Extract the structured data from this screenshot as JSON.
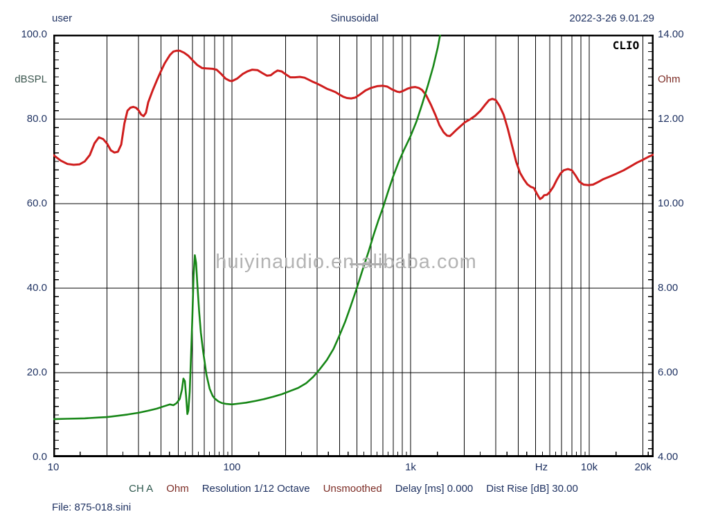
{
  "header": {
    "left": "user",
    "center": "Sinusoidal",
    "right": "2022-3-26 9.01.29"
  },
  "plot": {
    "brand": "CLIO",
    "watermark": "huiyinaudio.en.alibaba.com",
    "left_axis": {
      "label": "dBSPL",
      "min": 0,
      "max": 100,
      "grid_values": [
        20,
        40,
        60,
        80
      ],
      "minor_tick_step": 2,
      "ticks": [
        {
          "label": "100.0",
          "value": 100
        },
        {
          "label": "80.0",
          "value": 80
        },
        {
          "label": "60.0",
          "value": 60
        },
        {
          "label": "40.0",
          "value": 40
        },
        {
          "label": "20.0",
          "value": 20
        },
        {
          "label": "0.0",
          "value": 0
        }
      ]
    },
    "right_axis": {
      "label": "Ohm",
      "min": 4,
      "max": 14,
      "grid_values": [
        6,
        8,
        10,
        12
      ],
      "minor_tick_step": 0.2,
      "ticks": [
        {
          "label": "14.00",
          "value": 14
        },
        {
          "label": "12.00",
          "value": 12
        },
        {
          "label": "10.00",
          "value": 10
        },
        {
          "label": "8.00",
          "value": 8
        },
        {
          "label": "6.00",
          "value": 6
        },
        {
          "label": "4.00",
          "value": 4
        }
      ]
    },
    "x_axis": {
      "unit": "Hz",
      "min": 10,
      "max": 22900,
      "scale": "log",
      "labels": [
        {
          "label": "10",
          "freq": 10
        },
        {
          "label": "100",
          "freq": 100
        },
        {
          "label": "1k",
          "freq": 1000
        },
        {
          "label": "Hz",
          "freq": 5400
        },
        {
          "label": "10k",
          "freq": 10000
        },
        {
          "label": "20k",
          "freq": 20000
        }
      ]
    }
  },
  "status_line": {
    "segments": [
      {
        "text": "CH A",
        "color": "#2d574d"
      },
      {
        "text": "Ohm",
        "color": "#7c2b24"
      },
      {
        "text": "Resolution 1/12 Octave",
        "color": "#1e3161"
      },
      {
        "text": "Unsmoothed",
        "color": "#7c2b24"
      },
      {
        "text": "Delay [ms] 0.000",
        "color": "#1e3161"
      },
      {
        "text": "Dist Rise [dB] 30.00",
        "color": "#1e3161"
      }
    ]
  },
  "file_label": "File: 875-018.sini",
  "chart_data": {
    "type": "line",
    "title": "Sinusoidal",
    "x_scale": "log",
    "x_range": [
      10,
      22900
    ],
    "grid": true,
    "x_gridlines": [
      20,
      30,
      40,
      50,
      60,
      70,
      80,
      90,
      100,
      200,
      300,
      400,
      500,
      600,
      700,
      800,
      900,
      1000,
      2000,
      3000,
      4000,
      5000,
      6000,
      7000,
      8000,
      9000,
      10000,
      20000
    ],
    "y_gridlines_db": [
      20,
      40,
      60,
      80
    ],
    "y_gridlines_ohm": [
      6,
      8,
      10,
      12
    ],
    "series": [
      {
        "name": "SPL response",
        "unit": "dBSPL",
        "axis": "left",
        "color": "#cf1d1d",
        "points": [
          [
            10,
            71.5
          ],
          [
            11,
            70.2
          ],
          [
            12,
            69.4
          ],
          [
            13,
            69.2
          ],
          [
            14,
            69.3
          ],
          [
            15,
            70.0
          ],
          [
            16,
            71.5
          ],
          [
            17,
            74.3
          ],
          [
            18,
            75.7
          ],
          [
            19,
            75.3
          ],
          [
            20,
            74.2
          ],
          [
            21,
            72.6
          ],
          [
            22,
            72.1
          ],
          [
            23,
            72.3
          ],
          [
            24,
            74.0
          ],
          [
            25,
            79.0
          ],
          [
            26,
            82.0
          ],
          [
            27,
            82.7
          ],
          [
            28,
            82.9
          ],
          [
            29,
            82.7
          ],
          [
            30,
            82.1
          ],
          [
            31,
            81.1
          ],
          [
            32,
            80.7
          ],
          [
            33,
            81.5
          ],
          [
            34,
            84.0
          ],
          [
            36,
            86.8
          ],
          [
            38,
            89.2
          ],
          [
            40,
            91.3
          ],
          [
            42,
            93.2
          ],
          [
            45,
            95.2
          ],
          [
            47,
            96.0
          ],
          [
            49,
            96.2
          ],
          [
            51,
            96.2
          ],
          [
            54,
            95.7
          ],
          [
            57,
            95.0
          ],
          [
            60,
            94.0
          ],
          [
            64,
            92.8
          ],
          [
            68,
            92.1
          ],
          [
            72,
            92.0
          ],
          [
            78,
            91.9
          ],
          [
            82,
            91.7
          ],
          [
            87,
            90.7
          ],
          [
            92,
            89.6
          ],
          [
            97,
            89.1
          ],
          [
            100,
            89.0
          ],
          [
            107,
            89.6
          ],
          [
            115,
            90.7
          ],
          [
            122,
            91.3
          ],
          [
            130,
            91.7
          ],
          [
            139,
            91.6
          ],
          [
            148,
            90.9
          ],
          [
            157,
            90.3
          ],
          [
            165,
            90.4
          ],
          [
            172,
            91.0
          ],
          [
            180,
            91.5
          ],
          [
            190,
            91.3
          ],
          [
            200,
            90.6
          ],
          [
            212,
            89.9
          ],
          [
            225,
            89.9
          ],
          [
            240,
            90.0
          ],
          [
            255,
            89.8
          ],
          [
            270,
            89.3
          ],
          [
            285,
            88.8
          ],
          [
            300,
            88.4
          ],
          [
            320,
            87.8
          ],
          [
            340,
            87.2
          ],
          [
            360,
            86.8
          ],
          [
            380,
            86.4
          ],
          [
            400,
            85.8
          ],
          [
            420,
            85.3
          ],
          [
            440,
            85.0
          ],
          [
            465,
            84.9
          ],
          [
            490,
            85.1
          ],
          [
            520,
            85.8
          ],
          [
            560,
            86.8
          ],
          [
            600,
            87.4
          ],
          [
            650,
            87.8
          ],
          [
            700,
            87.9
          ],
          [
            740,
            87.7
          ],
          [
            790,
            87.0
          ],
          [
            840,
            86.5
          ],
          [
            870,
            86.4
          ],
          [
            910,
            86.7
          ],
          [
            960,
            87.2
          ],
          [
            1010,
            87.5
          ],
          [
            1060,
            87.6
          ],
          [
            1110,
            87.4
          ],
          [
            1160,
            86.9
          ],
          [
            1220,
            85.7
          ],
          [
            1300,
            83.4
          ],
          [
            1380,
            80.9
          ],
          [
            1450,
            78.6
          ],
          [
            1530,
            76.9
          ],
          [
            1600,
            76.1
          ],
          [
            1660,
            76.0
          ],
          [
            1720,
            76.6
          ],
          [
            1820,
            77.6
          ],
          [
            1920,
            78.5
          ],
          [
            2020,
            79.3
          ],
          [
            2160,
            80.0
          ],
          [
            2300,
            80.8
          ],
          [
            2450,
            81.9
          ],
          [
            2600,
            83.3
          ],
          [
            2750,
            84.5
          ],
          [
            2870,
            84.8
          ],
          [
            3000,
            84.5
          ],
          [
            3150,
            83.1
          ],
          [
            3320,
            81.0
          ],
          [
            3500,
            77.7
          ],
          [
            3700,
            73.7
          ],
          [
            3900,
            69.9
          ],
          [
            4100,
            67.3
          ],
          [
            4300,
            65.8
          ],
          [
            4500,
            64.6
          ],
          [
            4700,
            64.0
          ],
          [
            4900,
            63.7
          ],
          [
            5100,
            62.3
          ],
          [
            5300,
            61.1
          ],
          [
            5450,
            61.4
          ],
          [
            5600,
            62.0
          ],
          [
            5800,
            62.1
          ],
          [
            6000,
            62.7
          ],
          [
            6300,
            64.0
          ],
          [
            6600,
            65.7
          ],
          [
            6900,
            67.1
          ],
          [
            7200,
            67.9
          ],
          [
            7600,
            68.2
          ],
          [
            8000,
            67.9
          ],
          [
            8400,
            66.6
          ],
          [
            8800,
            65.2
          ],
          [
            9300,
            64.5
          ],
          [
            9900,
            64.4
          ],
          [
            10500,
            64.5
          ],
          [
            11200,
            65.1
          ],
          [
            12000,
            65.8
          ],
          [
            13000,
            66.4
          ],
          [
            14200,
            67.1
          ],
          [
            15600,
            67.9
          ],
          [
            17000,
            68.8
          ],
          [
            18500,
            69.7
          ],
          [
            20000,
            70.4
          ],
          [
            21500,
            71.1
          ],
          [
            22900,
            71.6
          ]
        ]
      },
      {
        "name": "Impedance",
        "unit": "Ohm",
        "axis": "right",
        "color": "#168616",
        "points": [
          [
            10,
            4.9
          ],
          [
            12,
            4.91
          ],
          [
            15,
            4.92
          ],
          [
            18,
            4.94
          ],
          [
            20,
            4.95
          ],
          [
            23,
            4.98
          ],
          [
            26,
            5.01
          ],
          [
            30,
            5.05
          ],
          [
            34,
            5.1
          ],
          [
            38,
            5.15
          ],
          [
            42,
            5.21
          ],
          [
            45,
            5.25
          ],
          [
            47,
            5.23
          ],
          [
            49,
            5.28
          ],
          [
            51,
            5.38
          ],
          [
            52.5,
            5.6
          ],
          [
            53.5,
            5.86
          ],
          [
            54.5,
            5.8
          ],
          [
            55.5,
            5.4
          ],
          [
            56.3,
            5.02
          ],
          [
            57,
            5.1
          ],
          [
            58,
            5.55
          ],
          [
            59,
            6.4
          ],
          [
            60,
            7.3
          ],
          [
            61,
            8.3
          ],
          [
            62,
            8.78
          ],
          [
            63,
            8.6
          ],
          [
            64,
            8.1
          ],
          [
            65.5,
            7.45
          ],
          [
            67,
            6.95
          ],
          [
            69,
            6.5
          ],
          [
            70,
            6.32
          ],
          [
            72,
            5.95
          ],
          [
            75,
            5.62
          ],
          [
            78,
            5.45
          ],
          [
            80,
            5.39
          ],
          [
            84,
            5.32
          ],
          [
            88,
            5.28
          ],
          [
            93,
            5.26
          ],
          [
            100,
            5.25
          ],
          [
            110,
            5.27
          ],
          [
            120,
            5.29
          ],
          [
            135,
            5.33
          ],
          [
            150,
            5.37
          ],
          [
            170,
            5.43
          ],
          [
            190,
            5.49
          ],
          [
            210,
            5.56
          ],
          [
            235,
            5.64
          ],
          [
            260,
            5.75
          ],
          [
            285,
            5.9
          ],
          [
            310,
            6.08
          ],
          [
            340,
            6.3
          ],
          [
            370,
            6.56
          ],
          [
            400,
            6.88
          ],
          [
            430,
            7.2
          ],
          [
            460,
            7.55
          ],
          [
            500,
            8.0
          ],
          [
            540,
            8.45
          ],
          [
            580,
            8.85
          ],
          [
            620,
            9.25
          ],
          [
            660,
            9.6
          ],
          [
            700,
            9.9
          ],
          [
            750,
            10.3
          ],
          [
            800,
            10.65
          ],
          [
            860,
            11.0
          ],
          [
            920,
            11.28
          ],
          [
            1000,
            11.6
          ],
          [
            1080,
            11.95
          ],
          [
            1160,
            12.35
          ],
          [
            1250,
            12.8
          ],
          [
            1340,
            13.25
          ],
          [
            1420,
            13.7
          ],
          [
            1480,
            14.1
          ]
        ]
      }
    ]
  }
}
